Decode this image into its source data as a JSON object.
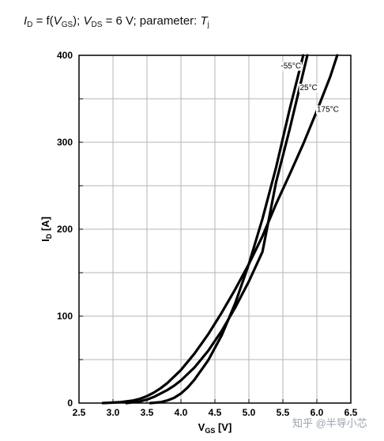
{
  "title": {
    "id_sym": "I",
    "id_sub": "D",
    "eq1": " = f(",
    "vgs_sym": "V",
    "vgs_sub": "GS",
    "eq2": "); ",
    "vds_sym": "V",
    "vds_sub": "DS",
    "eq3": " = 6 V; parameter: ",
    "param_sym": "T",
    "param_sub": "j"
  },
  "watermark": "知乎 @半导小芯",
  "chart_data": {
    "type": "line",
    "title": "",
    "xlabel_main": "V",
    "xlabel_sub": "GS",
    "xlabel_unit": " [V]",
    "ylabel_main": "I",
    "ylabel_sub": "D",
    "ylabel_unit": " [A]",
    "xlim": [
      2.5,
      6.5
    ],
    "ylim": [
      0,
      400
    ],
    "x_ticks": [
      "2.5",
      "3.0",
      "3.5",
      "4.0",
      "4.5",
      "5.0",
      "5.5",
      "6.0",
      "6.5"
    ],
    "y_ticks": [
      "0",
      "100",
      "200",
      "300",
      "400"
    ],
    "grid": true,
    "series": [
      {
        "name": "-55°C",
        "x": [
          3.55,
          3.7,
          3.8,
          3.9,
          4.0,
          4.1,
          4.2,
          4.4,
          4.6,
          4.8,
          5.0,
          5.2,
          5.4,
          5.6,
          5.8
        ],
        "y": [
          0,
          1,
          3,
          6,
          11,
          18,
          27,
          49,
          78,
          115,
          160,
          212,
          271,
          338,
          400
        ]
      },
      {
        "name": "25°C",
        "x": [
          3.2,
          3.3,
          3.4,
          3.5,
          3.6,
          3.7,
          3.8,
          3.9,
          4.0,
          4.2,
          4.4,
          4.6,
          4.8,
          5.0,
          5.2,
          5.4,
          5.6,
          5.86
        ],
        "y": [
          0,
          1,
          2,
          4,
          7,
          11,
          15,
          20,
          26,
          41,
          60,
          83,
          110,
          140,
          174,
          254,
          315,
          400
        ]
      },
      {
        "name": "175°C",
        "x": [
          2.85,
          3.0,
          3.1,
          3.2,
          3.3,
          3.4,
          3.5,
          3.6,
          3.7,
          3.8,
          4.0,
          4.2,
          4.4,
          4.6,
          4.8,
          5.0,
          5.2,
          5.4,
          5.6,
          5.8,
          6.0,
          6.2,
          6.3
        ],
        "y": [
          0,
          0.5,
          1,
          2,
          3,
          5,
          8,
          12,
          17,
          23,
          38,
          57,
          79,
          104,
          131,
          160,
          192,
          229,
          263,
          298,
          336,
          376,
          400
        ]
      }
    ],
    "annotations": [
      {
        "text": "-55°C",
        "x": 5.47,
        "y": 385
      },
      {
        "text": "25°C",
        "x": 5.75,
        "y": 360
      },
      {
        "text": "175°C",
        "x": 6.0,
        "y": 335
      }
    ]
  }
}
